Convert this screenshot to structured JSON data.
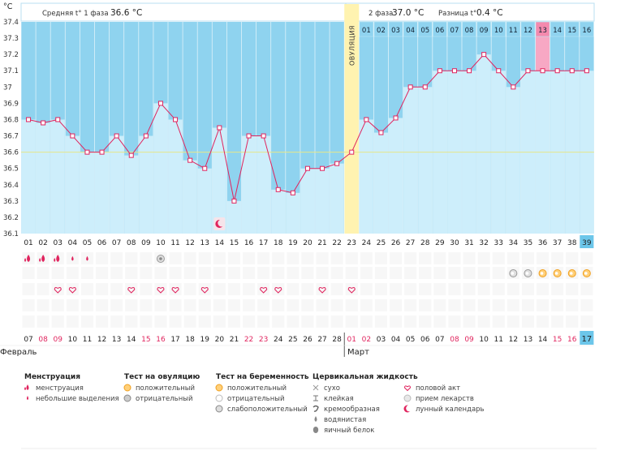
{
  "unit_label": "°C",
  "phase1_label": "Средняя t° 1 фаза",
  "phase1_value": "36.6 °C",
  "phase2_label": "2 фаза",
  "phase2_value": "37.0 °C",
  "diff_label": "Разница t°",
  "diff_value": "0.4 °C",
  "ovulation_label": "ОВУЛЯЦИЯ",
  "month1": "Февраль",
  "month2": "Март",
  "colors": {
    "phase_bg": "#8fd3ef",
    "bar_fill": "#cdeefb",
    "ovulation": "#fff3b0",
    "line": "#e0245e",
    "highlight": "#f7a8c4"
  },
  "chart_data": {
    "type": "line",
    "ylabel": "°C",
    "ylim": [
      36.1,
      37.4
    ],
    "yticks": [
      "37.4",
      "37.3",
      "37.2",
      "37.1",
      "37",
      "36.9",
      "36.8",
      "36.7",
      "36.6",
      "36.5",
      "36.4",
      "36.3",
      "36.2",
      "36.1"
    ],
    "cycle_days": [
      "01",
      "02",
      "03",
      "04",
      "05",
      "06",
      "07",
      "08",
      "09",
      "10",
      "11",
      "12",
      "13",
      "14",
      "15",
      "16",
      "17",
      "18",
      "19",
      "20",
      "21",
      "22",
      "23",
      "24",
      "25",
      "26",
      "27",
      "28",
      "29",
      "30",
      "31",
      "32",
      "33",
      "34",
      "35",
      "36",
      "37",
      "38",
      "39"
    ],
    "dates": [
      "07",
      "08",
      "09",
      "10",
      "11",
      "12",
      "13",
      "14",
      "15",
      "16",
      "17",
      "18",
      "19",
      "20",
      "21",
      "22",
      "23",
      "24",
      "25",
      "26",
      "27",
      "28",
      "01",
      "02",
      "03",
      "04",
      "05",
      "06",
      "07",
      "08",
      "09",
      "10",
      "11",
      "12",
      "13",
      "14",
      "15",
      "16",
      "17"
    ],
    "red_date_indices": [
      1,
      2,
      8,
      9,
      15,
      16,
      22,
      23,
      29,
      30,
      36,
      37
    ],
    "phase2_days": [
      "01",
      "02",
      "03",
      "04",
      "05",
      "06",
      "07",
      "08",
      "09",
      "10",
      "11",
      "12",
      "13",
      "14",
      "15",
      "16"
    ],
    "temperature": [
      36.8,
      36.78,
      36.8,
      36.7,
      36.6,
      36.6,
      36.7,
      36.58,
      36.7,
      36.9,
      36.8,
      36.55,
      36.5,
      36.75,
      36.3,
      36.7,
      36.7,
      36.37,
      36.35,
      36.5,
      36.5,
      36.53,
      36.6,
      36.8,
      36.72,
      36.81,
      37.0,
      37.0,
      37.1,
      37.1,
      37.1,
      37.2,
      37.1,
      37.0,
      37.1,
      37.1,
      37.1,
      37.1,
      37.1
    ],
    "cover_line": 36.6,
    "ovulation_day_index": 22,
    "highlight_day_index": 35,
    "menstruation": [
      {
        "day": 0,
        "kind": "heavy"
      },
      {
        "day": 1,
        "kind": "heavy"
      },
      {
        "day": 2,
        "kind": "heavy"
      },
      {
        "day": 3,
        "kind": "light"
      },
      {
        "day": 4,
        "kind": "light"
      }
    ],
    "ovulation_tests": [
      {
        "day": 9,
        "kind": "negative"
      }
    ],
    "pregnancy_tests": [
      {
        "day": 33,
        "kind": "weak"
      },
      {
        "day": 34,
        "kind": "weak"
      },
      {
        "day": 35,
        "kind": "positive"
      },
      {
        "day": 36,
        "kind": "positive"
      },
      {
        "day": 37,
        "kind": "positive"
      },
      {
        "day": 38,
        "kind": "positive"
      }
    ],
    "intercourse_days": [
      2,
      3,
      7,
      9,
      10,
      12,
      16,
      17,
      20,
      22
    ],
    "moon_day": 13
  },
  "legend": {
    "groups": [
      {
        "title": "Менструация",
        "items": [
          {
            "icon": "drop-heavy-icon",
            "label": "менструация"
          },
          {
            "icon": "drop-small-icon",
            "label": "небольшие выделения"
          }
        ]
      },
      {
        "title": "Тест на овуляцию",
        "items": [
          {
            "icon": "sun-icon",
            "label": "положительный"
          },
          {
            "icon": "grey-circle-icon",
            "label": "отрицательный"
          }
        ]
      },
      {
        "title": "Тест на беременность",
        "items": [
          {
            "icon": "orange-circle-icon",
            "label": "положительный"
          },
          {
            "icon": "white-circle-icon",
            "label": "отрицательный"
          },
          {
            "icon": "grey-ring-icon",
            "label": "слабоположительный"
          }
        ]
      },
      {
        "title": "Цервикальная жидкость",
        "items": [
          {
            "icon": "cross-icon",
            "label": "сухо"
          },
          {
            "icon": "t-bar-icon",
            "label": "клейкая"
          },
          {
            "icon": "swirl-icon",
            "label": "кремообразная"
          },
          {
            "icon": "water-drop-icon",
            "label": "водянистая"
          },
          {
            "icon": "egg-icon",
            "label": "яичный белок"
          }
        ]
      },
      {
        "title": "",
        "items": [
          {
            "icon": "heart-icon",
            "label": "половой акт"
          },
          {
            "icon": "pill-icon",
            "label": "прием лекарств"
          },
          {
            "icon": "moon-icon",
            "label": "лунный календарь"
          }
        ]
      }
    ]
  }
}
